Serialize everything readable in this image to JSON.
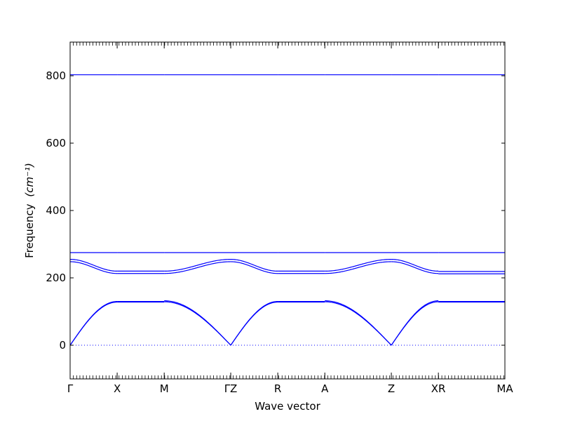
{
  "chart_data": {
    "type": "line",
    "title": "",
    "xlabel": "Wave vector",
    "ylabel": "Frequency",
    "ylabel_unit": "(cm⁻¹)",
    "ylim": [
      -100,
      900
    ],
    "yticks": [
      0,
      200,
      400,
      600,
      800
    ],
    "grid": false,
    "line_color": "#0000ff",
    "high_symmetry_points": [
      {
        "label": "Γ",
        "x": 0.0
      },
      {
        "label": "X",
        "x": 0.5
      },
      {
        "label": "M",
        "x": 1.0
      },
      {
        "label": "ΓZ",
        "x": 1.707
      },
      {
        "label": "R",
        "x": 2.207
      },
      {
        "label": "A",
        "x": 2.707
      },
      {
        "label": "Z",
        "x": 3.414
      },
      {
        "label": "XR",
        "x": 3.914
      },
      {
        "label": "MA",
        "x": 4.621
      }
    ],
    "segments": [
      {
        "from": "Γ",
        "to": "X",
        "xrange": [
          0.0,
          0.5
        ],
        "series": [
          {
            "start": 0,
            "end": 130,
            "shape": "rise"
          },
          {
            "start": 0,
            "end": 128,
            "shape": "rise"
          },
          {
            "start": 255,
            "end": 220,
            "shape": "cos"
          },
          {
            "start": 248,
            "end": 213,
            "shape": "cos"
          },
          {
            "start": 275,
            "end": 275,
            "shape": "flat"
          },
          {
            "start": 803,
            "end": 803,
            "shape": "flat"
          }
        ]
      },
      {
        "from": "X",
        "to": "M",
        "xrange": [
          0.5,
          1.0
        ],
        "series": [
          {
            "start": 130,
            "end": 130,
            "shape": "flat"
          },
          {
            "start": 128,
            "end": 128,
            "shape": "flat"
          },
          {
            "start": 220,
            "end": 220,
            "shape": "flat"
          },
          {
            "start": 213,
            "end": 213,
            "shape": "flat"
          },
          {
            "start": 275,
            "end": 275,
            "shape": "flat"
          },
          {
            "start": 803,
            "end": 803,
            "shape": "flat"
          }
        ]
      },
      {
        "from": "M",
        "to": "Γ",
        "xrange": [
          1.0,
          1.707
        ],
        "series": [
          {
            "start": 132,
            "end": 0,
            "shape": "fall"
          },
          {
            "start": 129,
            "end": 0,
            "shape": "fall"
          },
          {
            "start": 220,
            "end": 255,
            "shape": "cos"
          },
          {
            "start": 213,
            "end": 248,
            "shape": "cos"
          },
          {
            "start": 275,
            "end": 275,
            "shape": "flat"
          },
          {
            "start": 803,
            "end": 803,
            "shape": "flat"
          }
        ]
      },
      {
        "from": "Z",
        "to": "R",
        "xrange": [
          1.707,
          2.207
        ],
        "series": [
          {
            "start": 0,
            "end": 130,
            "shape": "rise"
          },
          {
            "start": 0,
            "end": 128,
            "shape": "rise"
          },
          {
            "start": 255,
            "end": 220,
            "shape": "cos"
          },
          {
            "start": 248,
            "end": 213,
            "shape": "cos"
          },
          {
            "start": 275,
            "end": 275,
            "shape": "flat"
          },
          {
            "start": 803,
            "end": 803,
            "shape": "flat"
          }
        ]
      },
      {
        "from": "R",
        "to": "A",
        "xrange": [
          2.207,
          2.707
        ],
        "series": [
          {
            "start": 130,
            "end": 130,
            "shape": "flat"
          },
          {
            "start": 128,
            "end": 128,
            "shape": "flat"
          },
          {
            "start": 220,
            "end": 220,
            "shape": "flat"
          },
          {
            "start": 213,
            "end": 213,
            "shape": "flat"
          },
          {
            "start": 275,
            "end": 275,
            "shape": "flat"
          },
          {
            "start": 803,
            "end": 803,
            "shape": "flat"
          }
        ]
      },
      {
        "from": "A",
        "to": "Z",
        "xrange": [
          2.707,
          3.414
        ],
        "series": [
          {
            "start": 132,
            "end": 0,
            "shape": "fall"
          },
          {
            "start": 129,
            "end": 0,
            "shape": "fall"
          },
          {
            "start": 220,
            "end": 255,
            "shape": "cos"
          },
          {
            "start": 213,
            "end": 248,
            "shape": "cos"
          },
          {
            "start": 275,
            "end": 275,
            "shape": "flat"
          },
          {
            "start": 803,
            "end": 803,
            "shape": "flat"
          }
        ]
      },
      {
        "from": "Z",
        "to": "X",
        "xrange": [
          3.414,
          3.914
        ],
        "series": [
          {
            "start": 0,
            "end": 132,
            "shape": "rise"
          },
          {
            "start": 0,
            "end": 129,
            "shape": "rise"
          },
          {
            "start": 255,
            "end": 220,
            "shape": "cos"
          },
          {
            "start": 248,
            "end": 213,
            "shape": "cos"
          },
          {
            "start": 275,
            "end": 275,
            "shape": "flat"
          },
          {
            "start": 803,
            "end": 803,
            "shape": "flat"
          }
        ]
      },
      {
        "from": "R",
        "to": "M",
        "xrange": [
          3.914,
          4.621
        ],
        "series": [
          {
            "start": 130,
            "end": 130,
            "shape": "flat"
          },
          {
            "start": 128,
            "end": 128,
            "shape": "flat"
          },
          {
            "start": 219,
            "end": 219,
            "shape": "flat"
          },
          {
            "start": 212,
            "end": 212,
            "shape": "flat"
          },
          {
            "start": 275,
            "end": 275,
            "shape": "flat"
          },
          {
            "start": 803,
            "end": 803,
            "shape": "flat"
          }
        ]
      }
    ]
  }
}
